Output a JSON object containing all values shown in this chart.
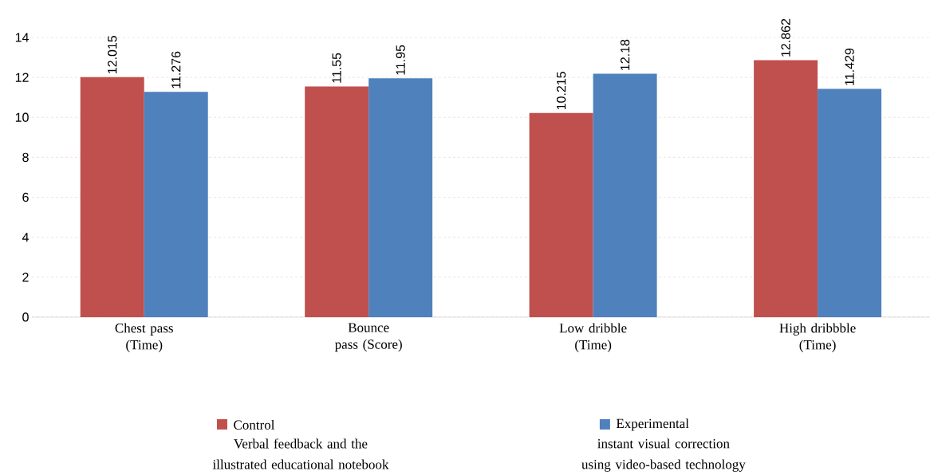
{
  "chart_data": {
    "type": "bar",
    "categories": [
      "Chest pass (Time)",
      "Bounce pass (Score)",
      "Low dribble (Time)",
      "High dribbble (Time)"
    ],
    "series": [
      {
        "name": "Control",
        "color": "#c0504d",
        "values": [
          12.015,
          11.55,
          10.215,
          12.862
        ]
      },
      {
        "name": "Experimental",
        "color": "#4f81bd",
        "values": [
          11.276,
          11.95,
          12.18,
          11.429
        ]
      }
    ],
    "ylim": [
      0,
      14
    ],
    "yticks": [
      0,
      2,
      4,
      6,
      8,
      10,
      12,
      14
    ],
    "grid": "y",
    "legend": "bottom",
    "data_labels": true,
    "annotations": [
      "Verbal feedback and the illustrated educational notebook",
      "instant visual correction using video-based technology"
    ]
  }
}
